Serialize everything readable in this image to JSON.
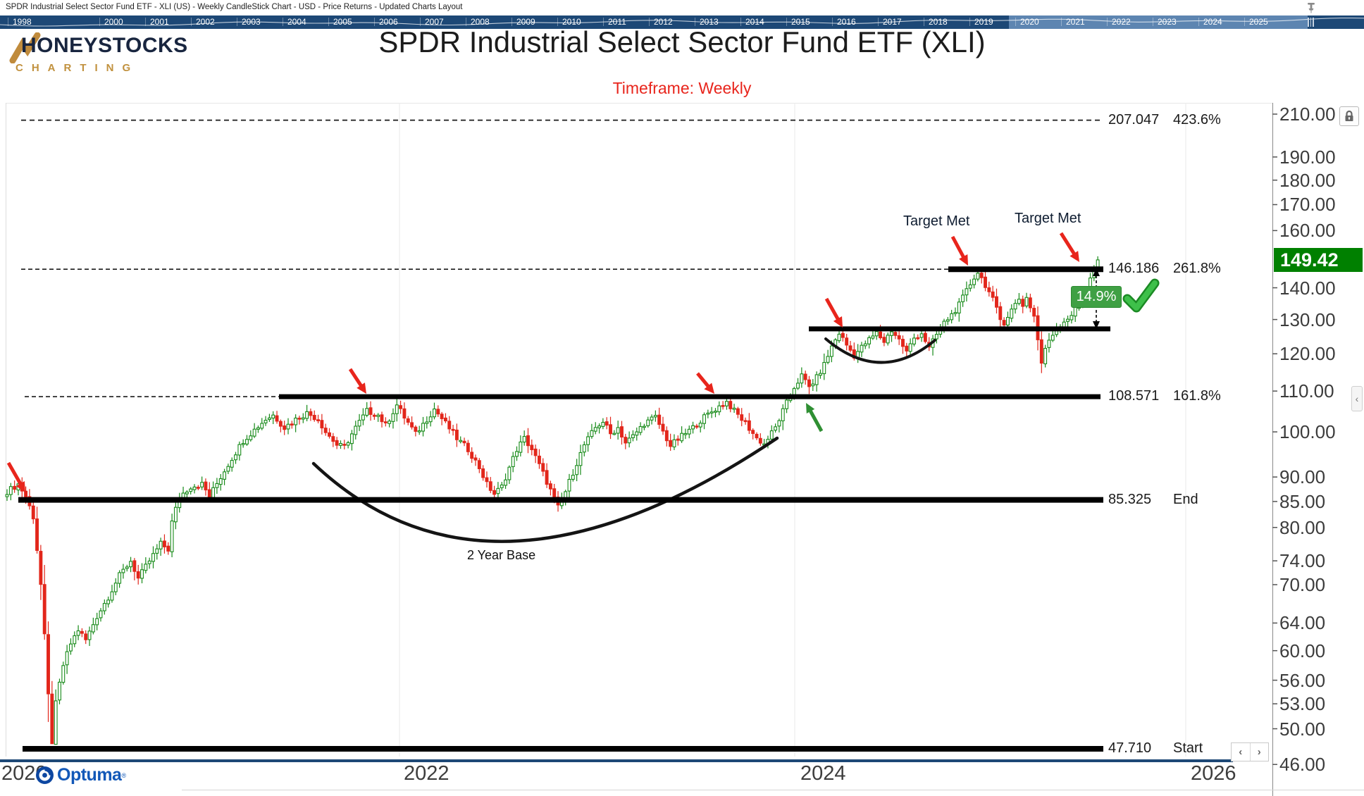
{
  "window": {
    "title": "SPDR Industrial Select Sector Fund ETF - XLI (US) - Weekly CandleStick Chart - USD - Price Returns - Updated Charts Layout"
  },
  "timeline": {
    "years": [
      "1998",
      "2000",
      "2001",
      "2002",
      "2003",
      "2004",
      "2005",
      "2006",
      "2007",
      "2008",
      "2009",
      "2010",
      "2011",
      "2012",
      "2013",
      "2014",
      "2015",
      "2016",
      "2017",
      "2018",
      "2019",
      "2020",
      "2021",
      "2022",
      "2023",
      "2024",
      "2025"
    ]
  },
  "brand": {
    "name": "HONEYSTOCKS",
    "tagline": "CHARTING"
  },
  "header": {
    "title": "SPDR Industrial Select Sector Fund ETF (XLI)",
    "subtitle": "Timeframe: Weekly"
  },
  "chart_data": {
    "type": "candlestick",
    "title": "SPDR Industrial Select Sector Fund ETF (XLI)",
    "symbol": "XLI",
    "timeframe": "Weekly",
    "currency": "USD",
    "y_scale": "log",
    "ylim": [
      46,
      213
    ],
    "x_range_years": [
      2020,
      2025.6
    ],
    "x_axis_labels": [
      "2020",
      "2022",
      "2024",
      "2026"
    ],
    "y_axis_ticks": [
      "210.00",
      "190.00",
      "180.00",
      "170.00",
      "160.00",
      "140.00",
      "130.00",
      "120.00",
      "110.00",
      "100.00",
      "90.00",
      "85.00",
      "80.00",
      "74.00",
      "70.00",
      "64.00",
      "60.00",
      "56.00",
      "53.00",
      "50.00",
      "46.00"
    ],
    "current_price": "149.42",
    "fib_extension_levels": [
      {
        "price": 207.047,
        "value": "207.047",
        "pct": "423.6%",
        "style": "dashed"
      },
      {
        "price": 146.186,
        "value": "146.186",
        "pct": "261.8%",
        "style": "dashed-then-solid"
      },
      {
        "price": 108.571,
        "value": "108.571",
        "pct": "161.8%",
        "style": "dashed-then-solid"
      },
      {
        "price": 85.325,
        "value": "85.325",
        "pct": "End",
        "style": "solid"
      },
      {
        "price": 47.71,
        "value": "47.710",
        "pct": "Start",
        "style": "solid"
      }
    ],
    "unlabeled_resistance_price": 127.2,
    "price_path_anchors": [
      [
        0,
        87
      ],
      [
        3,
        88.5
      ],
      [
        5,
        86
      ],
      [
        7,
        82
      ],
      [
        9,
        70
      ],
      [
        11,
        54
      ],
      [
        12,
        48.5
      ],
      [
        13,
        53
      ],
      [
        15,
        58
      ],
      [
        17,
        61
      ],
      [
        19,
        63
      ],
      [
        21,
        61.5
      ],
      [
        24,
        65
      ],
      [
        27,
        68
      ],
      [
        30,
        71.5
      ],
      [
        33,
        74
      ],
      [
        35,
        71
      ],
      [
        38,
        74
      ],
      [
        41,
        77
      ],
      [
        43,
        76
      ],
      [
        44,
        81
      ],
      [
        46,
        86
      ],
      [
        49,
        88
      ],
      [
        52,
        88.5
      ],
      [
        54,
        86
      ],
      [
        57,
        90
      ],
      [
        60,
        94
      ],
      [
        63,
        98
      ],
      [
        66,
        100.5
      ],
      [
        69,
        103
      ],
      [
        71,
        104
      ],
      [
        74,
        101
      ],
      [
        77,
        103
      ],
      [
        80,
        104.5
      ],
      [
        83,
        103
      ],
      [
        85,
        100
      ],
      [
        88,
        97
      ],
      [
        90,
        96.5
      ],
      [
        93,
        101
      ],
      [
        96,
        105
      ],
      [
        99,
        104
      ],
      [
        101,
        101.5
      ],
      [
        104,
        106.5
      ],
      [
        106,
        103.5
      ],
      [
        109,
        99.5
      ],
      [
        112,
        103
      ],
      [
        114,
        105.5
      ],
      [
        117,
        102
      ],
      [
        120,
        98.5
      ],
      [
        123,
        96
      ],
      [
        126,
        92
      ],
      [
        128,
        88.5
      ],
      [
        130,
        86.5
      ],
      [
        132,
        88
      ],
      [
        134,
        92
      ],
      [
        136,
        96
      ],
      [
        138,
        98.5
      ],
      [
        140,
        96
      ],
      [
        142,
        92.5
      ],
      [
        144,
        89
      ],
      [
        146,
        85.5
      ],
      [
        147,
        83.8
      ],
      [
        149,
        87
      ],
      [
        151,
        91
      ],
      [
        154,
        97
      ],
      [
        157,
        101
      ],
      [
        159,
        102.5
      ],
      [
        161,
        99.5
      ],
      [
        163,
        101
      ],
      [
        165,
        97.5
      ],
      [
        167,
        99
      ],
      [
        170,
        102
      ],
      [
        173,
        103.5
      ],
      [
        175,
        100
      ],
      [
        177,
        96.8
      ],
      [
        180,
        99
      ],
      [
        183,
        101
      ],
      [
        186,
        103.5
      ],
      [
        189,
        105.5
      ],
      [
        192,
        107.3
      ],
      [
        194,
        105
      ],
      [
        197,
        102
      ],
      [
        200,
        98.5
      ],
      [
        202,
        97.2
      ],
      [
        205,
        101
      ],
      [
        208,
        107
      ],
      [
        210,
        111
      ],
      [
        212,
        114
      ],
      [
        214,
        111
      ],
      [
        216,
        113.5
      ],
      [
        218,
        117
      ],
      [
        220,
        122
      ],
      [
        222,
        126
      ],
      [
        224,
        122.5
      ],
      [
        226,
        119.5
      ],
      [
        229,
        123
      ],
      [
        232,
        126
      ],
      [
        234,
        123.5
      ],
      [
        236,
        126.8
      ],
      [
        238,
        124
      ],
      [
        240,
        120.5
      ],
      [
        242,
        124.5
      ],
      [
        244,
        126
      ],
      [
        246,
        121.5
      ],
      [
        248,
        125.5
      ],
      [
        250,
        129
      ],
      [
        252,
        131.5
      ],
      [
        254,
        134.5
      ],
      [
        256,
        139
      ],
      [
        258,
        143.5
      ],
      [
        259,
        145.2
      ],
      [
        261,
        141
      ],
      [
        263,
        136
      ],
      [
        265,
        130
      ],
      [
        266,
        129.2
      ],
      [
        268,
        133
      ],
      [
        270,
        136.5
      ],
      [
        271,
        134.5
      ],
      [
        272,
        136.8
      ],
      [
        273,
        134
      ],
      [
        274,
        131
      ],
      [
        275,
        124
      ],
      [
        276,
        117.5
      ],
      [
        277,
        121
      ],
      [
        278,
        124
      ],
      [
        280,
        127.5
      ],
      [
        282,
        129.5
      ],
      [
        284,
        131.5
      ],
      [
        286,
        134.5
      ],
      [
        287,
        137
      ],
      [
        288,
        140
      ],
      [
        289,
        143.5
      ],
      [
        290,
        146.5
      ],
      [
        291,
        149.42
      ]
    ]
  },
  "annotations": {
    "target_met_1": "Target Met",
    "target_met_2": "Target Met",
    "base_label": "2 Year Base",
    "measure_badge": "14.9%"
  },
  "axis_controls": {
    "collapse_arrow": "‹"
  },
  "footer": {
    "logo": "Optuma",
    "reg_mark": "®",
    "prev": "‹",
    "next": "›"
  },
  "colors": {
    "candle_up": "#168a18",
    "candle_down": "#e2261b",
    "price_box": "#008000",
    "arrow_red": "#e8251c",
    "arrow_green": "#2f8f33",
    "badge_green": "#3fa044",
    "timeline_navy": "#1d4876",
    "timeline_light": "#5d85b1",
    "subtitle_red": "#e8251c"
  }
}
